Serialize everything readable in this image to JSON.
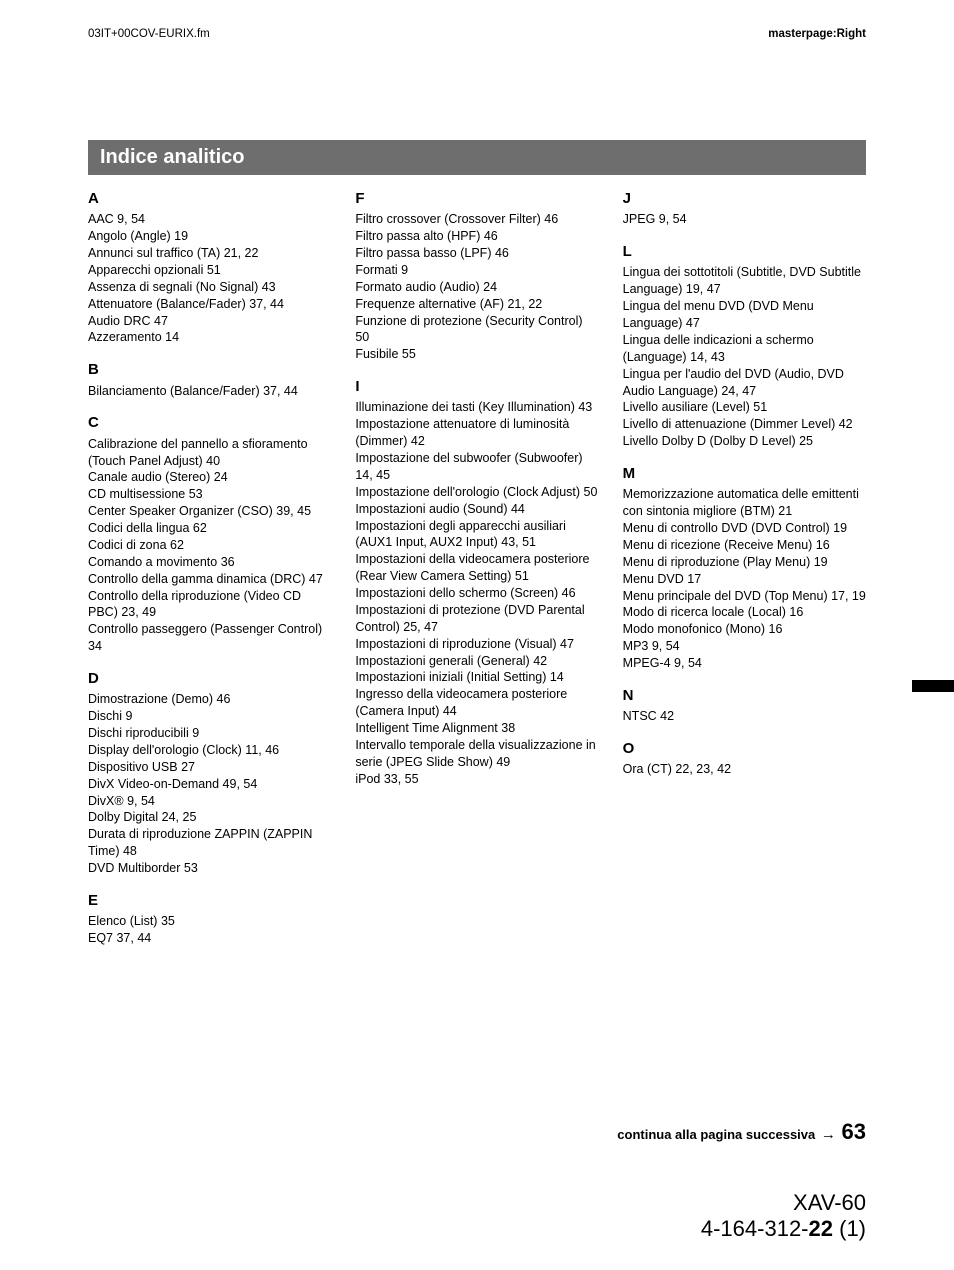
{
  "header": {
    "left": "03IT+00COV-EURIX.fm",
    "right": "masterpage:Right"
  },
  "section_title": "Indice analitico",
  "columns": [
    {
      "groups": [
        {
          "letter": "A",
          "entries": [
            "AAC 9, 54",
            "Angolo (Angle) 19",
            "Annunci sul traffico (TA) 21, 22",
            "Apparecchi opzionali 51",
            "Assenza di segnali (No Signal) 43",
            "Attenuatore (Balance/Fader) 37, 44",
            "Audio DRC 47",
            "Azzeramento 14"
          ]
        },
        {
          "letter": "B",
          "entries": [
            "Bilanciamento (Balance/Fader) 37, 44"
          ]
        },
        {
          "letter": "C",
          "entries": [
            "Calibrazione del pannello a sfioramento (Touch Panel Adjust) 40",
            "Canale audio (Stereo) 24",
            "CD multisessione 53",
            "Center Speaker Organizer (CSO) 39, 45",
            "Codici della lingua 62",
            "Codici di zona 62",
            "Comando a movimento 36",
            "Controllo della gamma dinamica (DRC) 47",
            "Controllo della riproduzione (Video CD PBC) 23, 49",
            "Controllo passeggero (Passenger Control) 34"
          ]
        },
        {
          "letter": "D",
          "entries": [
            "Dimostrazione (Demo) 46",
            "Dischi 9",
            "Dischi riproducibili 9",
            "Display dell'orologio (Clock) 11, 46",
            "Dispositivo USB 27",
            "DivX Video-on-Demand  49, 54",
            "DivX® 9, 54",
            "Dolby Digital 24, 25",
            "Durata di riproduzione ZAPPIN (ZAPPIN Time) 48",
            "DVD Multiborder 53"
          ]
        },
        {
          "letter": "E",
          "entries": [
            "Elenco (List) 35",
            "EQ7 37, 44"
          ]
        }
      ]
    },
    {
      "groups": [
        {
          "letter": "F",
          "entries": [
            "Filtro crossover (Crossover Filter) 46",
            "Filtro passa alto (HPF) 46",
            "Filtro passa basso (LPF) 46",
            "Formati 9",
            "Formato audio (Audio) 24",
            "Frequenze alternative (AF) 21, 22",
            "Funzione di protezione (Security Control) 50",
            "Fusibile 55"
          ]
        },
        {
          "letter": "I",
          "entries": [
            "Illuminazione dei tasti (Key Illumination) 43",
            "Impostazione attenuatore di luminosità (Dimmer) 42",
            "Impostazione del subwoofer (Subwoofer) 14, 45",
            "Impostazione dell'orologio (Clock Adjust) 50",
            "Impostazioni audio (Sound) 44",
            "Impostazioni degli apparecchi ausiliari (AUX1 Input, AUX2 Input) 43, 51",
            "Impostazioni della videocamera posteriore (Rear View Camera Setting) 51",
            "Impostazioni dello schermo (Screen) 46",
            "Impostazioni di protezione (DVD Parental Control) 25, 47",
            "Impostazioni di riproduzione (Visual) 47",
            "Impostazioni generali (General) 42",
            "Impostazioni iniziali (Initial Setting) 14",
            "Ingresso della videocamera posteriore (Camera Input) 44",
            "Intelligent Time Alignment  38",
            "Intervallo temporale della visualizzazione in serie (JPEG Slide Show) 49",
            "iPod 33, 55"
          ]
        }
      ]
    },
    {
      "groups": [
        {
          "letter": "J",
          "entries": [
            "JPEG 9, 54"
          ]
        },
        {
          "letter": "L",
          "entries": [
            "Lingua dei sottotitoli (Subtitle, DVD Subtitle Language)  19, 47",
            "Lingua del menu DVD (DVD Menu Language) 47",
            "Lingua delle indicazioni a schermo (Language) 14, 43",
            "Lingua per l'audio del DVD (Audio, DVD Audio Language) 24, 47",
            "Livello ausiliare (Level) 51",
            "Livello di attenuazione (Dimmer Level) 42",
            "Livello Dolby D (Dolby D Level) 25"
          ]
        },
        {
          "letter": "M",
          "entries": [
            "Memorizzazione automatica delle emittenti con sintonia migliore (BTM) 21",
            "Menu di controllo DVD (DVD Control) 19",
            "Menu di ricezione (Receive Menu) 16",
            "Menu di riproduzione (Play Menu) 19",
            "Menu DVD 17",
            "Menu principale del DVD (Top Menu) 17, 19",
            "Modo di ricerca locale (Local) 16",
            "Modo monofonico (Mono) 16",
            "MP3 9, 54",
            "MPEG-4 9, 54"
          ]
        },
        {
          "letter": "N",
          "entries": [
            "NTSC 42"
          ]
        },
        {
          "letter": "O",
          "entries": [
            "Ora (CT) 22, 23, 42"
          ]
        }
      ]
    }
  ],
  "continue_text": "continua alla pagina successiva",
  "continue_arrow": "→",
  "page_number": "63",
  "footer": {
    "line1": "XAV-60",
    "line2_pre": "4-164-312-",
    "line2_bold": "22",
    "line2_post": " (1)"
  },
  "colors": {
    "header_bg": "#6e6e6e",
    "header_fg": "#ffffff",
    "text": "#000000",
    "bg": "#ffffff"
  }
}
